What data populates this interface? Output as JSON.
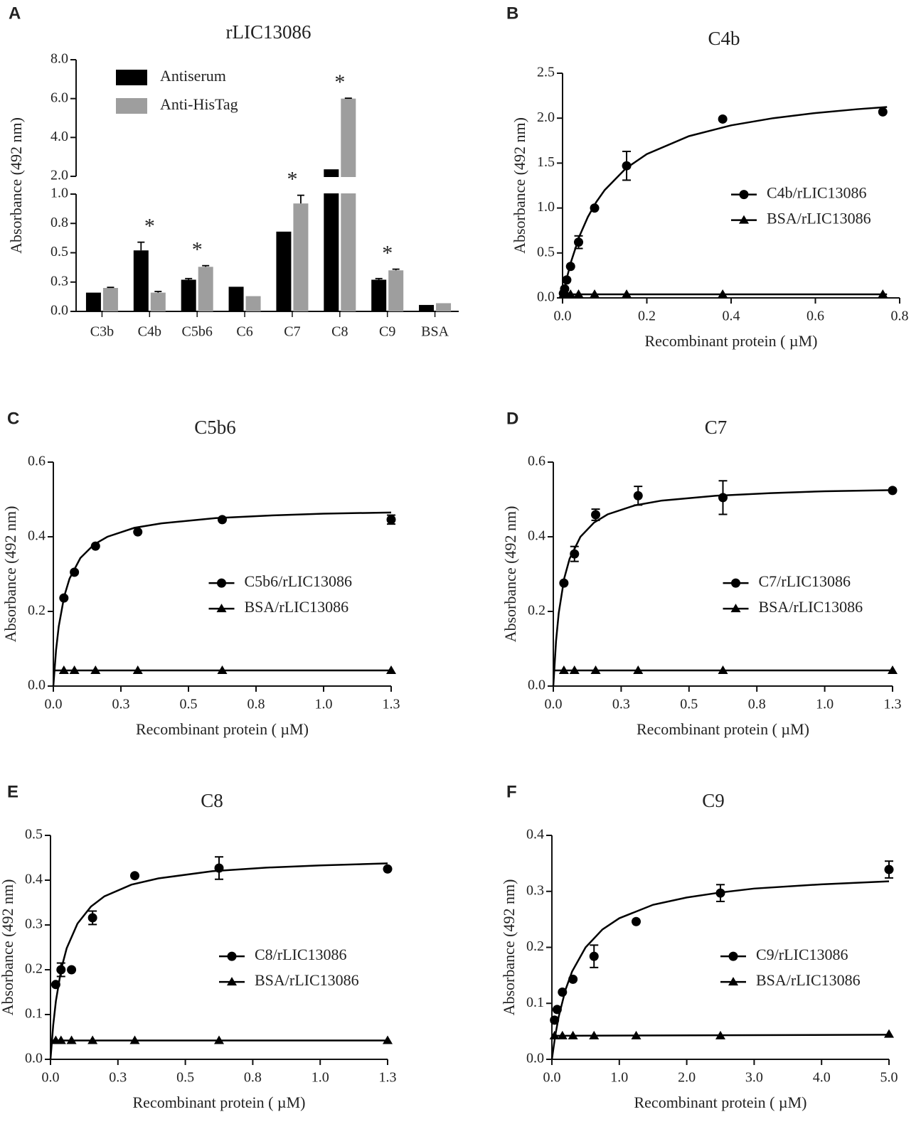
{
  "chart_data": [
    {
      "label": "A",
      "type": "bar",
      "title": "rLIC13086",
      "ylabel": "Absorbance (492 nm)",
      "categories": [
        "C3b",
        "C4b",
        "C5b6",
        "C6",
        "C7",
        "C8",
        "C9",
        "BSA"
      ],
      "series": [
        {
          "name": "Antiserum",
          "color": "#000000",
          "values": [
            0.16,
            0.52,
            0.27,
            0.21,
            0.68,
            2.36,
            0.27,
            0.055
          ],
          "errors": [
            null,
            0.07,
            0.01,
            null,
            null,
            null,
            0.01,
            null
          ]
        },
        {
          "name": "Anti-HisTag",
          "color": "#9e9e9e",
          "values": [
            0.2,
            0.16,
            0.38,
            0.13,
            0.92,
            6.0,
            0.35,
            0.07
          ],
          "errors": [
            0.005,
            0.01,
            0.01,
            null,
            0.07,
            0.02,
            0.01,
            null
          ]
        }
      ],
      "ylim": [
        0,
        8
      ],
      "ybreak": [
        1,
        2
      ],
      "yticks": [
        {
          "value": 0,
          "label": "0.0"
        },
        {
          "value": 0.25,
          "label": "0.3"
        },
        0.5,
        {
          "value": 0.75,
          "label": "0.8"
        },
        {
          "value": 1,
          "label": "1.0"
        },
        {
          "value": 2,
          "label": "2.0"
        },
        {
          "value": 4,
          "label": "4.0"
        },
        {
          "value": 6,
          "label": "6.0"
        },
        {
          "value": 8,
          "label": "8.0"
        }
      ],
      "annotations": [
        {
          "text": "*",
          "category": "C4b"
        },
        {
          "text": "*",
          "category": "C5b6"
        },
        {
          "text": "*",
          "category": "C7"
        },
        {
          "text": "*",
          "category": "C8"
        },
        {
          "text": "*",
          "category": "C9"
        }
      ],
      "legend": "upper left"
    },
    {
      "label": "B",
      "type": "scatter",
      "title": "C4b",
      "xlabel": "Recombinant protein ( µM)",
      "ylabel": "Absorbance (492 nm)",
      "xlim": [
        0,
        0.8
      ],
      "xticks": [
        {
          "value": 0,
          "label": "0.0"
        },
        0.2,
        0.4,
        0.6,
        0.8
      ],
      "ylim": [
        0,
        2.5
      ],
      "yticks": [
        {
          "value": 0,
          "label": "0.0"
        },
        0.5,
        {
          "value": 1,
          "label": "1.0"
        },
        1.5,
        {
          "value": 2,
          "label": "2.0"
        },
        2.5
      ],
      "legend": "center right",
      "series": [
        {
          "name": "C4b/rLIC13086",
          "color": "#000000",
          "marker": "circle",
          "x": [
            0.002,
            0.005,
            0.01,
            0.019,
            0.038,
            0.076,
            0.152,
            0.38,
            0.76
          ],
          "values": [
            0.05,
            0.1,
            0.2,
            0.35,
            0.62,
            1.0,
            1.47,
            1.99,
            2.07
          ],
          "errors": [
            null,
            null,
            null,
            null,
            0.07,
            null,
            0.16,
            null,
            null
          ],
          "fit": {
            "x": [
              0,
              0.01,
              0.02,
              0.04,
              0.06,
              0.08,
              0.1,
              0.15,
              0.2,
              0.3,
              0.4,
              0.5,
              0.6,
              0.7,
              0.77
            ],
            "values": [
              0,
              0.218,
              0.4,
              0.686,
              0.9,
              1.067,
              1.2,
              1.44,
              1.6,
              1.8,
              1.92,
              2.0,
              2.057,
              2.1,
              2.124
            ]
          }
        },
        {
          "name": "BSA/rLIC13086",
          "color": "#000000",
          "marker": "triangle",
          "x": [
            0.002,
            0.01,
            0.019,
            0.038,
            0.076,
            0.152,
            0.38,
            0.76
          ],
          "values": [
            0.04,
            0.04,
            0.04,
            0.04,
            0.04,
            0.04,
            0.04,
            0.04
          ],
          "errors": [
            null,
            null,
            null,
            null,
            null,
            null,
            null,
            null
          ],
          "fit": {
            "x": [
              0,
              0.77
            ],
            "values": [
              0.04,
              0.04
            ]
          }
        }
      ]
    },
    {
      "label": "C",
      "type": "scatter",
      "title": "C5b6",
      "xlabel": "Recombinant protein ( µM)",
      "ylabel": "Absorbance (492 nm)",
      "xlim": [
        0,
        1.25
      ],
      "xticks": [
        {
          "value": 0,
          "label": "0.0"
        },
        {
          "value": 0.25,
          "label": "0.3"
        },
        0.5,
        {
          "value": 0.75,
          "label": "0.8"
        },
        {
          "value": 1,
          "label": "1.0"
        },
        {
          "value": 1.25,
          "label": "1.3"
        }
      ],
      "ylim": [
        0,
        0.6
      ],
      "yticks": [
        {
          "value": 0,
          "label": "0.0"
        },
        0.2,
        0.4,
        0.6
      ],
      "legend": "center",
      "series": [
        {
          "name": "C5b6/rLIC13086",
          "color": "#000000",
          "marker": "circle",
          "x": [
            0.039,
            0.078,
            0.156,
            0.3125,
            0.625,
            1.25
          ],
          "values": [
            0.236,
            0.305,
            0.375,
            0.413,
            0.446,
            0.446
          ],
          "errors": [
            null,
            null,
            null,
            null,
            null,
            0.012
          ],
          "fit": {
            "x": [
              0,
              0.01,
              0.02,
              0.04,
              0.06,
              0.1,
              0.15,
              0.2,
              0.3,
              0.4,
              0.6,
              0.8,
              1.0,
              1.25
            ],
            "values": [
              0,
              0.096,
              0.16,
              0.24,
              0.288,
              0.343,
              0.379,
              0.4,
              0.424,
              0.436,
              0.45,
              0.457,
              0.462,
              0.465
            ]
          }
        },
        {
          "name": "BSA/rLIC13086",
          "color": "#000000",
          "marker": "triangle",
          "x": [
            0.039,
            0.078,
            0.156,
            0.3125,
            0.625,
            1.25
          ],
          "values": [
            0.042,
            0.042,
            0.042,
            0.042,
            0.042,
            0.042
          ],
          "errors": [
            null,
            null,
            null,
            null,
            null,
            null
          ],
          "fit": {
            "x": [
              0,
              1.25
            ],
            "values": [
              0.042,
              0.042
            ]
          }
        }
      ]
    },
    {
      "label": "D",
      "type": "scatter",
      "title": "C7",
      "xlabel": "Recombinant protein ( µM)",
      "ylabel": "Absorbance (492 nm)",
      "xlim": [
        0,
        1.25
      ],
      "xticks": [
        {
          "value": 0,
          "label": "0.0"
        },
        {
          "value": 0.25,
          "label": "0.3"
        },
        0.5,
        {
          "value": 0.75,
          "label": "0.8"
        },
        {
          "value": 1,
          "label": "1.0"
        },
        {
          "value": 1.25,
          "label": "1.3"
        }
      ],
      "ylim": [
        0,
        0.6
      ],
      "yticks": [
        {
          "value": 0,
          "label": "0.0"
        },
        0.2,
        0.4,
        0.6
      ],
      "legend": "center right",
      "series": [
        {
          "name": "C7/rLIC13086",
          "color": "#000000",
          "marker": "circle",
          "x": [
            0.039,
            0.078,
            0.156,
            0.3125,
            0.625,
            1.25
          ],
          "values": [
            0.276,
            0.354,
            0.459,
            0.51,
            0.505,
            0.524
          ],
          "errors": [
            null,
            0.02,
            0.015,
            0.025,
            0.045,
            null
          ],
          "fit": {
            "x": [
              0,
              0.01,
              0.02,
              0.04,
              0.06,
              0.1,
              0.15,
              0.2,
              0.3,
              0.4,
              0.6,
              0.8,
              1.0,
              1.25
            ],
            "values": [
              0,
              0.12,
              0.196,
              0.288,
              0.341,
              0.4,
              0.438,
              0.46,
              0.484,
              0.497,
              0.51,
              0.517,
              0.522,
              0.525
            ]
          }
        },
        {
          "name": "BSA/rLIC13086",
          "color": "#000000",
          "marker": "triangle",
          "x": [
            0.039,
            0.078,
            0.156,
            0.3125,
            0.625,
            1.25
          ],
          "values": [
            0.042,
            0.042,
            0.042,
            0.042,
            0.042,
            0.042
          ],
          "errors": [
            null,
            null,
            null,
            null,
            null,
            null
          ],
          "fit": {
            "x": [
              0,
              1.25
            ],
            "values": [
              0.042,
              0.042
            ]
          }
        }
      ]
    },
    {
      "label": "E",
      "type": "scatter",
      "title": "C8",
      "xlabel": "Recombinant protein ( µM)",
      "ylabel": "Absorbance (492 nm)",
      "xlim": [
        0,
        1.25
      ],
      "xticks": [
        {
          "value": 0,
          "label": "0.0"
        },
        {
          "value": 0.25,
          "label": "0.3"
        },
        0.5,
        {
          "value": 0.75,
          "label": "0.8"
        },
        {
          "value": 1,
          "label": "1.0"
        },
        {
          "value": 1.25,
          "label": "1.3"
        }
      ],
      "ylim": [
        0,
        0.5
      ],
      "yticks": [
        {
          "value": 0,
          "label": "0.0"
        },
        0.1,
        0.2,
        0.3,
        0.4,
        0.5
      ],
      "legend": "center right",
      "series": [
        {
          "name": "C8/rLIC13086",
          "color": "#000000",
          "marker": "circle",
          "x": [
            0.0195,
            0.039,
            0.078,
            0.156,
            0.3125,
            0.625,
            1.25
          ],
          "values": [
            0.167,
            0.2,
            0.2,
            0.316,
            0.41,
            0.427,
            0.425
          ],
          "errors": [
            null,
            0.015,
            null,
            0.015,
            null,
            0.025,
            null
          ],
          "fit": {
            "x": [
              0,
              0.01,
              0.02,
              0.04,
              0.06,
              0.1,
              0.15,
              0.2,
              0.3,
              0.4,
              0.6,
              0.8,
              1.0,
              1.25
            ],
            "values": [
              0,
              0.076,
              0.13,
              0.202,
              0.248,
              0.303,
              0.341,
              0.364,
              0.39,
              0.404,
              0.42,
              0.428,
              0.433,
              0.4375
            ]
          }
        },
        {
          "name": "BSA/rLIC13086",
          "color": "#000000",
          "marker": "triangle",
          "x": [
            0.0195,
            0.039,
            0.078,
            0.156,
            0.3125,
            0.625,
            1.25
          ],
          "values": [
            0.042,
            0.042,
            0.042,
            0.042,
            0.042,
            0.042,
            0.042
          ],
          "errors": [
            null,
            null,
            null,
            null,
            null,
            null,
            null
          ],
          "fit": {
            "x": [
              0,
              1.25
            ],
            "values": [
              0.042,
              0.042
            ]
          }
        }
      ]
    },
    {
      "label": "F",
      "type": "scatter",
      "title": "C9",
      "xlabel": "Recombinant protein ( µM)",
      "ylabel": "Absorbance (492 nm)",
      "xlim": [
        0,
        5
      ],
      "xticks": [
        {
          "value": 0,
          "label": "0.0"
        },
        {
          "value": 1,
          "label": "1.0"
        },
        {
          "value": 2,
          "label": "2.0"
        },
        {
          "value": 3,
          "label": "3.0"
        },
        {
          "value": 4,
          "label": "4.0"
        },
        {
          "value": 5,
          "label": "5.0"
        }
      ],
      "ylim": [
        0,
        0.4
      ],
      "yticks": [
        {
          "value": 0,
          "label": "0.0"
        },
        0.1,
        0.2,
        0.3,
        0.4
      ],
      "legend": "center right",
      "series": [
        {
          "name": "C9/rLIC13086",
          "color": "#000000",
          "marker": "circle",
          "x": [
            0.039,
            0.078,
            0.156,
            0.3125,
            0.625,
            1.25,
            2.5,
            5
          ],
          "values": [
            0.07,
            0.089,
            0.12,
            0.143,
            0.184,
            0.246,
            0.297,
            0.339
          ],
          "errors": [
            null,
            null,
            null,
            null,
            0.02,
            null,
            0.015,
            0.015
          ],
          "fit": {
            "x": [
              0,
              0.05,
              0.1,
              0.2,
              0.3,
              0.5,
              0.75,
              1,
              1.5,
              2,
              2.5,
              3,
              4,
              5
            ],
            "values": [
              0,
              0.0425,
              0.0756,
              0.1236,
              0.157,
              0.2,
              0.232,
              0.252,
              0.276,
              0.289,
              0.298,
              0.305,
              0.3126,
              0.318
            ]
          }
        },
        {
          "name": "BSA/rLIC13086",
          "color": "#000000",
          "marker": "triangle",
          "x": [
            0.039,
            0.156,
            0.3125,
            0.625,
            1.25,
            2.5,
            5
          ],
          "values": [
            0.042,
            0.042,
            0.042,
            0.042,
            0.042,
            0.042,
            0.045
          ],
          "errors": [
            null,
            null,
            null,
            null,
            null,
            null,
            null
          ],
          "fit": {
            "x": [
              0,
              5
            ],
            "values": [
              0.042,
              0.044
            ]
          }
        }
      ]
    }
  ]
}
